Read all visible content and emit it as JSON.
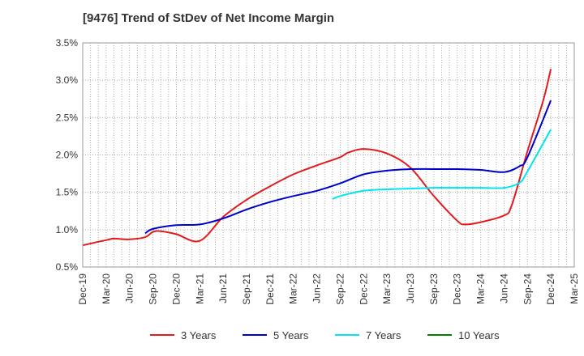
{
  "chart_data": {
    "type": "line",
    "title": "[9476]  Trend of StDev of Net Income Margin",
    "xlabel": "",
    "ylabel": "",
    "x_ticks": [
      "Dec-19",
      "Mar-20",
      "Jun-20",
      "Sep-20",
      "Dec-20",
      "Mar-21",
      "Jun-21",
      "Sep-21",
      "Dec-21",
      "Mar-22",
      "Jun-22",
      "Sep-22",
      "Dec-22",
      "Mar-23",
      "Jun-23",
      "Sep-23",
      "Dec-23",
      "Mar-24",
      "Jun-24",
      "Sep-24",
      "Dec-24",
      "Mar-25"
    ],
    "y_ticks": [
      "0.5%",
      "1.0%",
      "1.5%",
      "2.0%",
      "2.5%",
      "3.0%",
      "3.5%"
    ],
    "ylim": [
      0.5,
      3.5
    ],
    "grid": true,
    "legend_position": "bottom",
    "series": [
      {
        "name": "3 Years",
        "color": "#e31a1c",
        "points": [
          [
            "Dec-19",
            0.79
          ],
          [
            "Mar-20",
            0.86
          ],
          [
            "Apr-20",
            0.88
          ],
          [
            "Jun-20",
            0.87
          ],
          [
            "Aug-20",
            0.9
          ],
          [
            "Sep-20",
            0.97
          ],
          [
            "Oct-20",
            0.98
          ],
          [
            "Dec-20",
            0.94
          ],
          [
            "Mar-21",
            0.85
          ],
          [
            "Jun-21",
            1.17
          ],
          [
            "Sep-21",
            1.4
          ],
          [
            "Dec-21",
            1.58
          ],
          [
            "Mar-22",
            1.74
          ],
          [
            "Jun-22",
            1.86
          ],
          [
            "Sep-22",
            1.97
          ],
          [
            "Oct-22",
            2.03
          ],
          [
            "Dec-22",
            2.08
          ],
          [
            "Mar-23",
            2.02
          ],
          [
            "Jun-23",
            1.83
          ],
          [
            "Sep-23",
            1.45
          ],
          [
            "Dec-23",
            1.12
          ],
          [
            "Jan-24",
            1.07
          ],
          [
            "Mar-24",
            1.1
          ],
          [
            "Jun-24",
            1.19
          ],
          [
            "Jul-24",
            1.33
          ],
          [
            "Sep-24",
            2.05
          ],
          [
            "Nov-24",
            2.72
          ],
          [
            "Dec-24",
            3.15
          ]
        ]
      },
      {
        "name": "5 Years",
        "color": "#0000cc",
        "points": [
          [
            "Aug-20",
            0.95
          ],
          [
            "Sep-20",
            1.01
          ],
          [
            "Dec-20",
            1.06
          ],
          [
            "Mar-21",
            1.07
          ],
          [
            "Jun-21",
            1.15
          ],
          [
            "Sep-21",
            1.27
          ],
          [
            "Dec-21",
            1.37
          ],
          [
            "Mar-22",
            1.45
          ],
          [
            "Jun-22",
            1.52
          ],
          [
            "Sep-22",
            1.62
          ],
          [
            "Dec-22",
            1.74
          ],
          [
            "Mar-23",
            1.79
          ],
          [
            "Jun-23",
            1.81
          ],
          [
            "Sep-23",
            1.81
          ],
          [
            "Dec-23",
            1.81
          ],
          [
            "Mar-24",
            1.8
          ],
          [
            "Jun-24",
            1.77
          ],
          [
            "Aug-24",
            1.85
          ],
          [
            "Sep-24",
            1.97
          ],
          [
            "Dec-24",
            2.73
          ]
        ]
      },
      {
        "name": "7 Years",
        "color": "#00e5ee",
        "points": [
          [
            "Aug-22",
            1.41
          ],
          [
            "Sep-22",
            1.45
          ],
          [
            "Dec-22",
            1.52
          ],
          [
            "Mar-23",
            1.54
          ],
          [
            "Jun-23",
            1.55
          ],
          [
            "Sep-23",
            1.56
          ],
          [
            "Dec-23",
            1.56
          ],
          [
            "Mar-24",
            1.56
          ],
          [
            "Jun-24",
            1.56
          ],
          [
            "Aug-24",
            1.63
          ],
          [
            "Sep-24",
            1.78
          ],
          [
            "Dec-24",
            2.34
          ]
        ]
      },
      {
        "name": "10 Years",
        "color": "#008000",
        "points": []
      }
    ]
  }
}
